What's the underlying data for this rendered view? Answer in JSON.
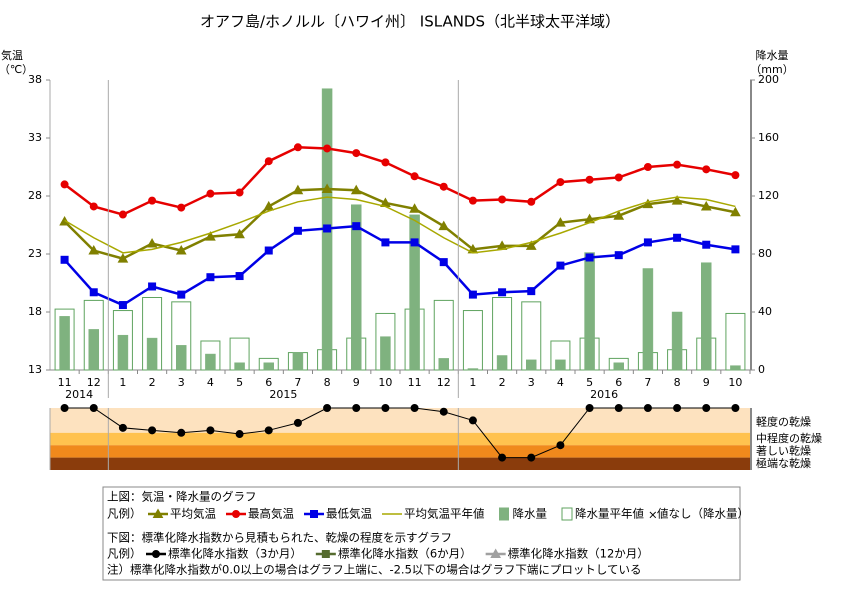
{
  "title": "オアフ島/ホノルル〔ハワイ州〕 ISLANDS（北半球太平洋域）",
  "chart_data": [
    {
      "type": "combo",
      "categories": [
        "11",
        "12",
        "1",
        "2",
        "3",
        "4",
        "5",
        "6",
        "7",
        "8",
        "9",
        "10",
        "11",
        "12",
        "1",
        "2",
        "3",
        "4",
        "5",
        "6",
        "7",
        "8",
        "9",
        "10"
      ],
      "year_labels": [
        "2014",
        "2015",
        "2016"
      ],
      "ylabel": "気温",
      "ylabel_unit": "（℃）",
      "y2label": "降水量",
      "y2label_unit": "（mm）",
      "ylim": [
        13,
        38
      ],
      "yticks": [
        13,
        18,
        23,
        28,
        33,
        38
      ],
      "y2lim": [
        0,
        200
      ],
      "y2ticks": [
        0,
        40,
        80,
        120,
        160,
        200
      ],
      "series": [
        {
          "name": "平均気温",
          "type": "line",
          "marker": "triangle",
          "color": "#808000",
          "values": [
            25.8,
            23.3,
            22.6,
            23.9,
            23.3,
            24.5,
            24.7,
            27.1,
            28.5,
            28.6,
            28.5,
            27.4,
            26.9,
            25.4,
            23.4,
            23.7,
            23.7,
            25.7,
            26.0,
            26.3,
            27.3,
            27.6,
            27.1,
            26.6
          ]
        },
        {
          "name": "最高気温",
          "type": "line",
          "marker": "circle",
          "color": "#e60000",
          "values": [
            29.0,
            27.1,
            26.4,
            27.6,
            27.0,
            28.2,
            28.3,
            31.0,
            32.2,
            32.1,
            31.7,
            30.9,
            29.7,
            28.8,
            27.6,
            27.7,
            27.5,
            29.2,
            29.4,
            29.6,
            30.5,
            30.7,
            30.3,
            29.8
          ]
        },
        {
          "name": "最低気温",
          "type": "line",
          "marker": "square",
          "color": "#0000e6",
          "values": [
            22.5,
            19.7,
            18.6,
            20.2,
            19.5,
            21.0,
            21.1,
            23.3,
            25.0,
            25.2,
            25.4,
            24.0,
            24.0,
            22.3,
            19.5,
            19.7,
            19.8,
            22.0,
            22.7,
            22.9,
            24.0,
            24.4,
            23.8,
            23.4
          ]
        },
        {
          "name": "平均気温平年値",
          "type": "line",
          "marker": "none",
          "color": "#a8a800",
          "values": [
            25.9,
            24.4,
            23.1,
            23.4,
            24.0,
            24.8,
            25.7,
            26.7,
            27.5,
            27.9,
            27.7,
            27.1,
            25.9,
            24.4,
            23.1,
            23.4,
            24.0,
            24.8,
            25.7,
            26.7,
            27.5,
            27.9,
            27.7,
            27.1
          ]
        },
        {
          "name": "降水量",
          "type": "bar",
          "style": "filled",
          "color": "#7fb27f",
          "axis": "y2",
          "values": [
            37,
            28,
            24,
            22,
            17,
            11,
            5,
            5,
            12,
            194,
            114,
            23,
            107,
            8,
            1,
            10,
            7,
            7,
            81,
            5,
            70,
            40,
            74,
            3
          ]
        },
        {
          "name": "降水量平年値",
          "type": "bar",
          "style": "hollow",
          "color": "#5fa35f",
          "axis": "y2",
          "values": [
            42,
            48,
            41,
            50,
            47,
            20,
            22,
            8,
            12,
            14,
            22,
            39,
            42,
            48,
            41,
            50,
            47,
            20,
            22,
            8,
            12,
            14,
            22,
            39
          ]
        }
      ],
      "legend_title": "上図：気温・降水量のグラフ",
      "legend_prefix": "凡例）",
      "missing_symbol": "×",
      "missing_label": "値なし（降水量）"
    },
    {
      "type": "line",
      "ylim": [
        -2.5,
        0
      ],
      "bands": [
        {
          "from": 0,
          "to": -1,
          "color": "#fde2bf",
          "label": "軽度の乾燥"
        },
        {
          "from": -1,
          "to": -1.5,
          "color": "#ffc24f",
          "label": "中程度の乾燥"
        },
        {
          "from": -1.5,
          "to": -2,
          "color": "#f0891c",
          "label": "著しい乾燥"
        },
        {
          "from": -2,
          "to": -2.5,
          "color": "#8a3c0c",
          "label": "極端な乾燥"
        }
      ],
      "series": [
        {
          "name": "標準化降水指数（3か月）",
          "marker": "circle",
          "color": "#000000",
          "values": [
            0,
            0,
            -0.8,
            -0.9,
            -1.0,
            -0.9,
            -1.05,
            -0.9,
            -0.6,
            0,
            0,
            0,
            0,
            -0.15,
            -0.5,
            -2.0,
            -2.0,
            -1.5,
            0,
            0,
            0,
            0,
            0,
            0
          ]
        },
        {
          "name": "標準化降水指数（6か月）",
          "marker": "square",
          "color": "#556b2f",
          "values": [
            null,
            null,
            null,
            null,
            null,
            null,
            null,
            null,
            null,
            null,
            null,
            null,
            null,
            null,
            null,
            null,
            null,
            null,
            null,
            null,
            null,
            null,
            null,
            null
          ]
        },
        {
          "name": "標準化降水指数（12か月）",
          "marker": "triangle",
          "color": "#a0a0a0",
          "values": [
            null,
            null,
            null,
            null,
            null,
            null,
            null,
            null,
            null,
            null,
            null,
            null,
            null,
            null,
            null,
            null,
            null,
            null,
            null,
            null,
            null,
            null,
            null,
            null
          ]
        }
      ],
      "legend_title": "下図：標準化降水指数から見積もられた、乾燥の程度を示すグラフ",
      "legend_prefix": "凡例）",
      "note": "注）標準化降水指数が0.0以上の場合はグラフ上端に、-2.5以下の場合はグラフ下端にプロットしている"
    }
  ]
}
